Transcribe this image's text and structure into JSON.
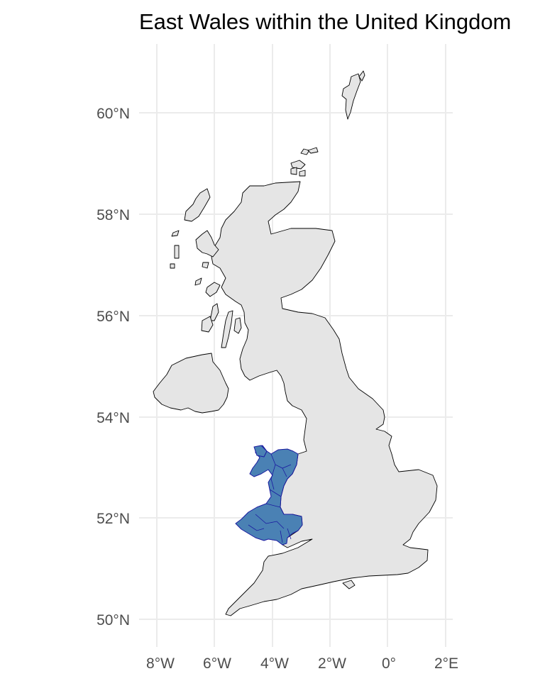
{
  "map": {
    "title": "East Wales within the United Kingdom",
    "x_ticks": [
      {
        "value": -8,
        "label": "8°W"
      },
      {
        "value": -6,
        "label": "6°W"
      },
      {
        "value": -4,
        "label": "4°W"
      },
      {
        "value": -2,
        "label": "2°W"
      },
      {
        "value": 0,
        "label": "0°"
      },
      {
        "value": 2,
        "label": "2°E"
      }
    ],
    "y_ticks": [
      {
        "value": 60,
        "label": "60°N"
      },
      {
        "value": 58,
        "label": "58°N"
      },
      {
        "value": 56,
        "label": "56°N"
      },
      {
        "value": 54,
        "label": "54°N"
      },
      {
        "value": 52,
        "label": "52°N"
      },
      {
        "value": 50,
        "label": "50°N"
      }
    ],
    "colors": {
      "land_fill": "#e5e5e5",
      "land_stroke": "#000000",
      "highlight_fill": "#4a81b4",
      "highlight_stroke": "#1a1aa0",
      "grid": "#ebebeb"
    },
    "highlighted_region": "Wales"
  }
}
